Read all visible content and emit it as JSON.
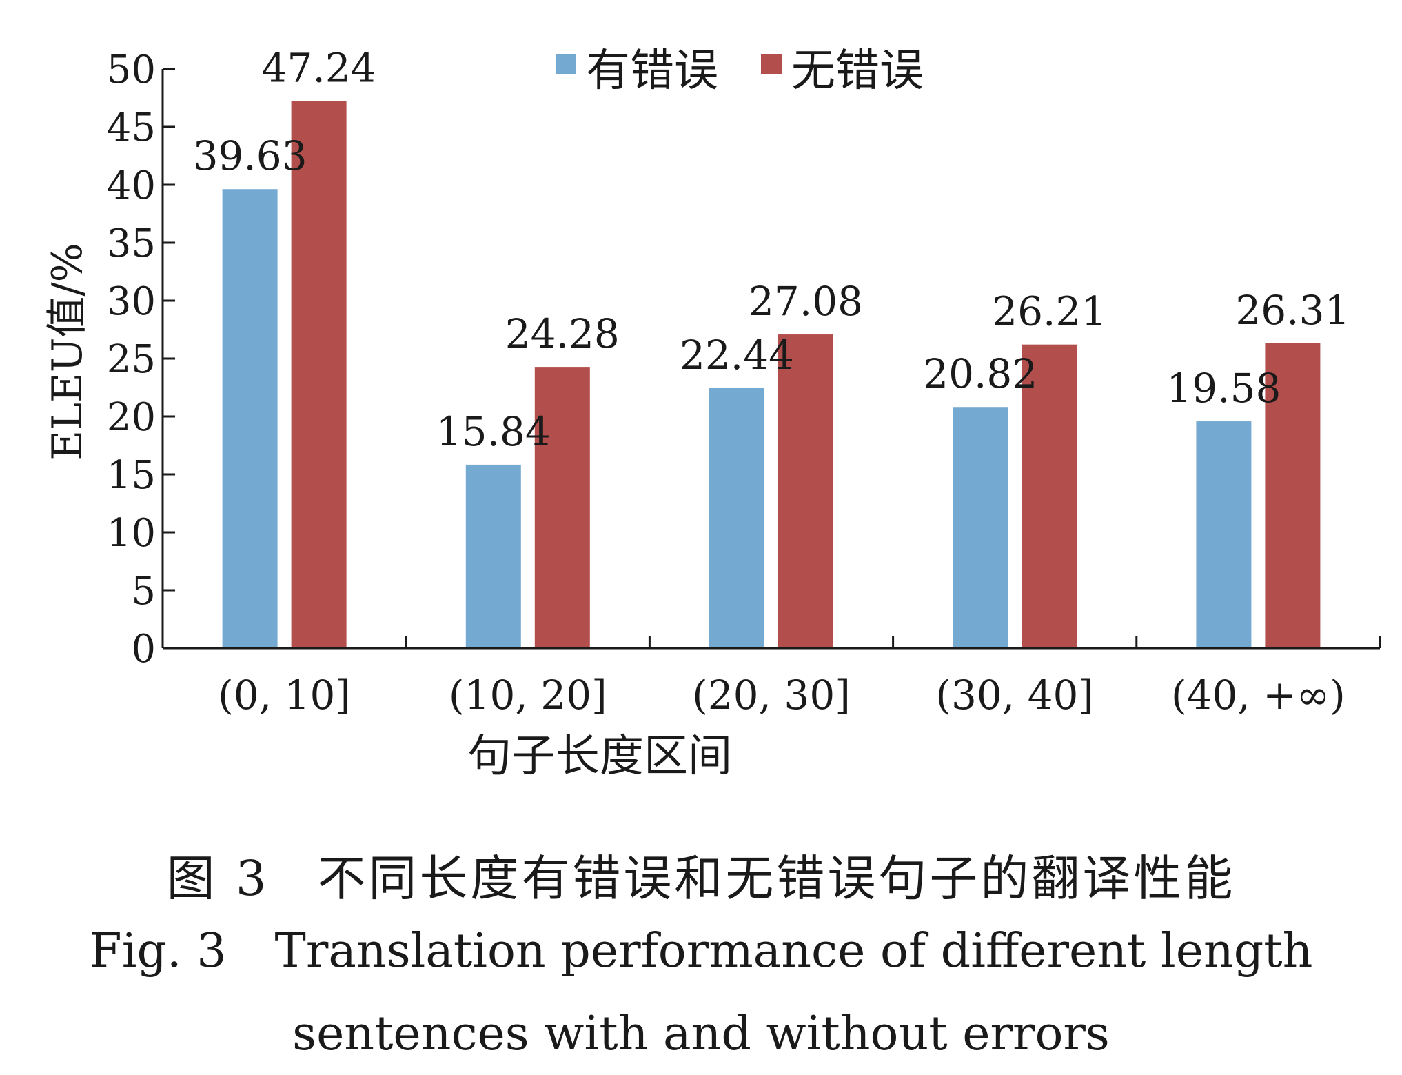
{
  "chart_data": {
    "type": "bar",
    "categories": [
      "(0, 10]",
      "(10, 20]",
      "(20, 30]",
      "(30, 40]",
      "(40, +∞)"
    ],
    "series": [
      {
        "name": "有错误",
        "values": [
          39.63,
          15.84,
          22.44,
          20.82,
          19.58
        ],
        "color": "#74a9d1"
      },
      {
        "name": "无错误",
        "values": [
          47.24,
          24.28,
          27.08,
          26.21,
          26.31
        ],
        "color": "#b24f4c"
      }
    ],
    "value_labels": [
      [
        "39.63",
        "15.84",
        "22.44",
        "20.82",
        "19.58"
      ],
      [
        "47.24",
        "24.28",
        "27.08",
        "26.21",
        "26.31"
      ]
    ],
    "yticks": [
      "0",
      "5",
      "10",
      "15",
      "20",
      "25",
      "30",
      "35",
      "40",
      "45",
      "50"
    ],
    "ylim": [
      0,
      50
    ],
    "ylabel": "ELEU值/%",
    "xlabel": "句子长度区间",
    "legend_position": "top-center",
    "grid": false
  },
  "caption": {
    "zh_number": "图 3",
    "zh_title": "不同长度有错误和无错误句子的翻译性能",
    "en_number": "Fig. 3",
    "en_title_line1": "Translation performance of different length",
    "en_title_line2": "sentences with and without errors"
  }
}
